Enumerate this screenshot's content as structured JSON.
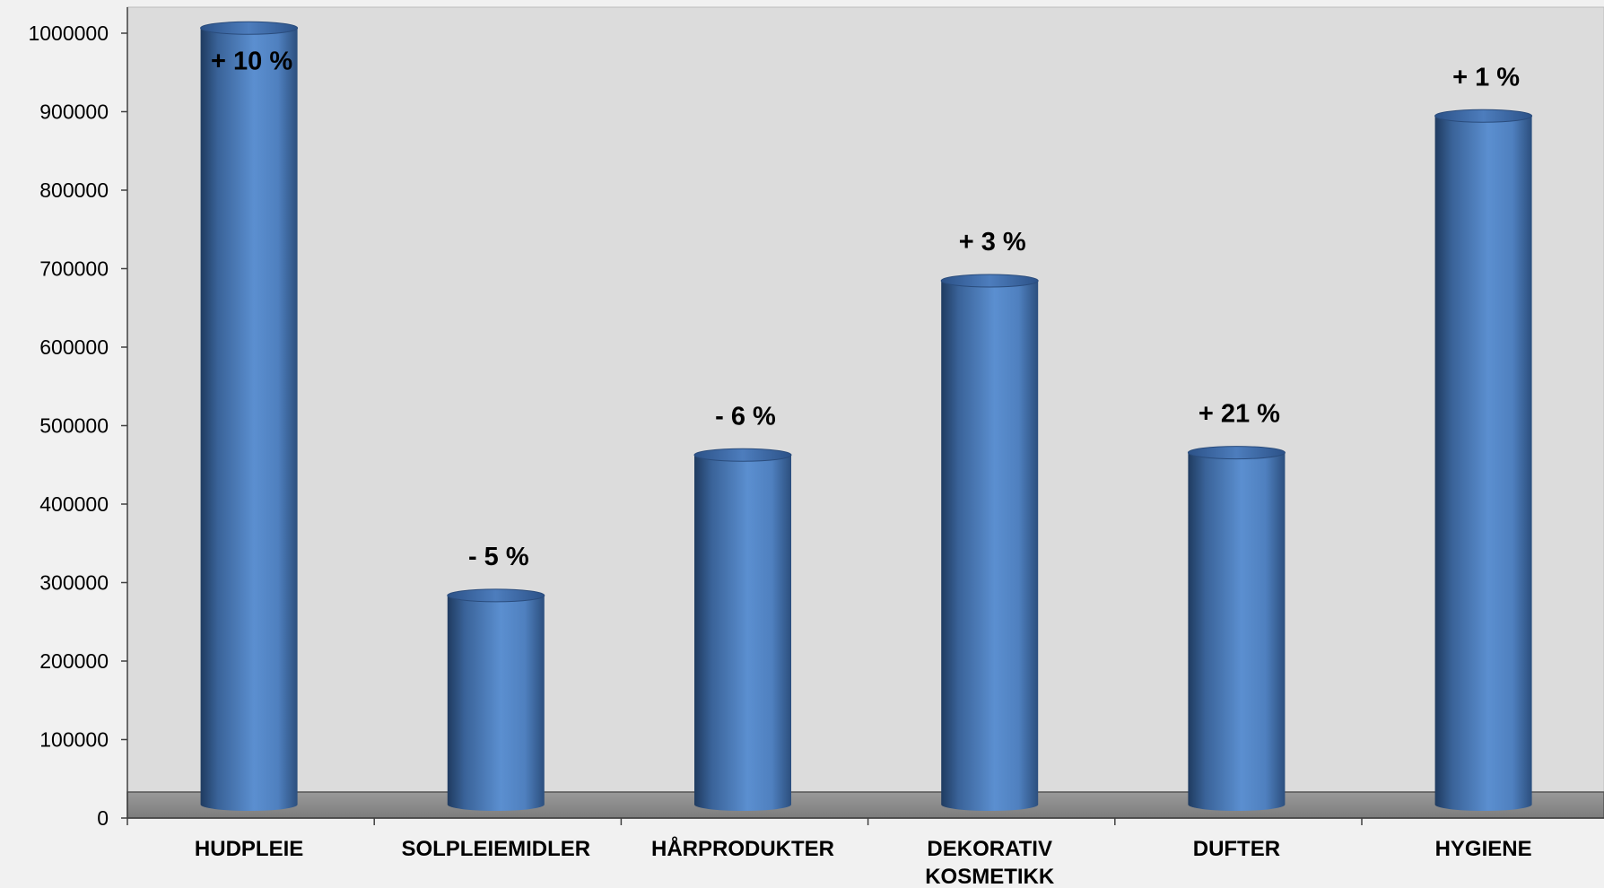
{
  "chart_data": {
    "type": "bar",
    "style": "3d-cylinder",
    "categories": [
      "HUDPLEIE",
      "SOLPLEIEMIDLER",
      "HÅRPRODUKTER",
      "DEKORATIV KOSMETIKK",
      "DUFTER",
      "HYGIENE"
    ],
    "category_lines": [
      [
        "HUDPLEIE"
      ],
      [
        "SOLPLEIEMIDLER"
      ],
      [
        "HÅRPRODUKTER"
      ],
      [
        "DEKORATIV",
        "KOSMETIKK"
      ],
      [
        "DUFTER"
      ],
      [
        "HYGIENE"
      ]
    ],
    "values": [
      1010000,
      287000,
      466000,
      688000,
      469000,
      898000
    ],
    "data_labels": [
      "+ 10 %",
      "- 5 %",
      "- 6 %",
      "+ 3 %",
      "+ 21 %",
      "+ 1 %"
    ],
    "yticks": [
      0,
      100000,
      200000,
      300000,
      400000,
      500000,
      600000,
      700000,
      800000,
      900000,
      1000000
    ],
    "ylim": [
      0,
      1000000
    ],
    "title": "",
    "xlabel": "",
    "ylabel": "",
    "grid": false,
    "legend": "none",
    "colors": {
      "bar": "#4f7fbf",
      "bar_dark": "#1f3b60",
      "bar_light": "#6f9dd8",
      "plot_background": "#dcdcdc",
      "page_background": "#f1f1f1",
      "floor": "#8c8c8c"
    }
  }
}
